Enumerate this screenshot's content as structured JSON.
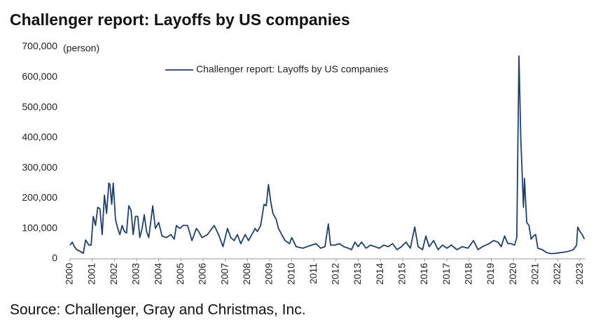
{
  "chart_data": {
    "type": "line",
    "title": "Challenger report: Layoffs by US companies",
    "y_unit": "(person)",
    "source": "Source: Challenger, Gray and Christmas, Inc.",
    "xlim": [
      2000,
      2023.25
    ],
    "xticks": [
      2000,
      2001,
      2002,
      2003,
      2004,
      2005,
      2006,
      2007,
      2008,
      2009,
      2010,
      2011,
      2012,
      2013,
      2014,
      2015,
      2016,
      2017,
      2018,
      2019,
      2020,
      2021,
      2022,
      2023
    ],
    "ylim": [
      0,
      700000
    ],
    "yticks": [
      0,
      {
        "value": 100000,
        "label": "100,000"
      },
      {
        "value": 200000,
        "label": "200,000"
      },
      {
        "value": 300000,
        "label": "300,000"
      },
      {
        "value": 400000,
        "label": "400,000"
      },
      {
        "value": 500000,
        "label": "500,000"
      },
      {
        "value": 600000,
        "label": "600,000"
      },
      {
        "value": 700000,
        "label": "700,000"
      }
    ],
    "legend": "top",
    "series": [
      {
        "name": "Challenger report: Layoffs by US companies",
        "color": "#1f3f68",
        "x": [
          2000.0,
          2000.1,
          2000.2,
          2000.3,
          2000.45,
          2000.6,
          2000.7,
          2000.85,
          2000.95,
          2001.05,
          2001.15,
          2001.25,
          2001.35,
          2001.45,
          2001.55,
          2001.65,
          2001.75,
          2001.8,
          2001.88,
          2001.95,
          2002.05,
          2002.15,
          2002.25,
          2002.35,
          2002.45,
          2002.55,
          2002.65,
          2002.75,
          2002.85,
          2002.95,
          2003.05,
          2003.15,
          2003.25,
          2003.35,
          2003.45,
          2003.55,
          2003.73,
          2003.85,
          2004.0,
          2004.15,
          2004.35,
          2004.55,
          2004.7,
          2004.8,
          2004.95,
          2005.1,
          2005.3,
          2005.5,
          2005.7,
          2005.8,
          2005.95,
          2006.2,
          2006.5,
          2006.7,
          2006.9,
          2007.1,
          2007.25,
          2007.4,
          2007.55,
          2007.7,
          2007.9,
          2008.05,
          2008.2,
          2008.35,
          2008.45,
          2008.6,
          2008.75,
          2008.85,
          2008.95,
          2009.05,
          2009.15,
          2009.3,
          2009.4,
          2009.55,
          2009.7,
          2009.9,
          2010.0,
          2010.2,
          2010.5,
          2010.7,
          2010.9,
          2011.1,
          2011.3,
          2011.5,
          2011.65,
          2011.75,
          2011.95,
          2012.15,
          2012.35,
          2012.55,
          2012.7,
          2012.85,
          2013.0,
          2013.15,
          2013.35,
          2013.55,
          2013.75,
          2013.95,
          2014.15,
          2014.35,
          2014.55,
          2014.75,
          2014.95,
          2015.15,
          2015.35,
          2015.55,
          2015.7,
          2015.9,
          2016.05,
          2016.2,
          2016.4,
          2016.6,
          2016.8,
          2017.0,
          2017.2,
          2017.45,
          2017.7,
          2017.95,
          2018.2,
          2018.4,
          2018.6,
          2018.9,
          2019.1,
          2019.3,
          2019.45,
          2019.6,
          2019.75,
          2019.9,
          2020.05,
          2020.15,
          2020.25,
          2020.33,
          2020.45,
          2020.5,
          2020.6,
          2020.7,
          2020.8,
          2020.9,
          2021.0,
          2021.1,
          2021.3,
          2021.5,
          2021.7,
          2021.9,
          2022.1,
          2022.3,
          2022.5,
          2022.7,
          2022.8,
          2022.85,
          2022.9,
          2023.0,
          2023.1,
          2023.2
        ],
        "values": [
          45000,
          55000,
          40000,
          30000,
          25000,
          18000,
          62000,
          45000,
          45000,
          140000,
          110000,
          170000,
          165000,
          80000,
          210000,
          150000,
          250000,
          245000,
          180000,
          250000,
          130000,
          100000,
          80000,
          110000,
          90000,
          85000,
          175000,
          160000,
          80000,
          140000,
          140000,
          70000,
          100000,
          145000,
          90000,
          70000,
          175000,
          100000,
          120000,
          75000,
          70000,
          80000,
          65000,
          110000,
          100000,
          110000,
          110000,
          60000,
          100000,
          90000,
          70000,
          80000,
          110000,
          80000,
          40000,
          100000,
          70000,
          60000,
          80000,
          50000,
          80000,
          60000,
          80000,
          100000,
          90000,
          110000,
          180000,
          175000,
          245000,
          190000,
          150000,
          130000,
          100000,
          80000,
          60000,
          50000,
          70000,
          40000,
          35000,
          40000,
          45000,
          50000,
          35000,
          40000,
          115000,
          45000,
          45000,
          50000,
          40000,
          35000,
          30000,
          55000,
          40000,
          55000,
          35000,
          45000,
          40000,
          35000,
          45000,
          40000,
          50000,
          30000,
          40000,
          55000,
          35000,
          105000,
          40000,
          30000,
          75000,
          40000,
          60000,
          30000,
          45000,
          35000,
          45000,
          30000,
          40000,
          35000,
          60000,
          30000,
          40000,
          50000,
          60000,
          55000,
          40000,
          75000,
          50000,
          50000,
          45000,
          70000,
          670000,
          400000,
          170000,
          265000,
          120000,
          110000,
          65000,
          75000,
          80000,
          35000,
          30000,
          20000,
          17000,
          18000,
          20000,
          22000,
          25000,
          30000,
          40000,
          45000,
          105000,
          90000,
          80000,
          65000
        ]
      }
    ]
  }
}
